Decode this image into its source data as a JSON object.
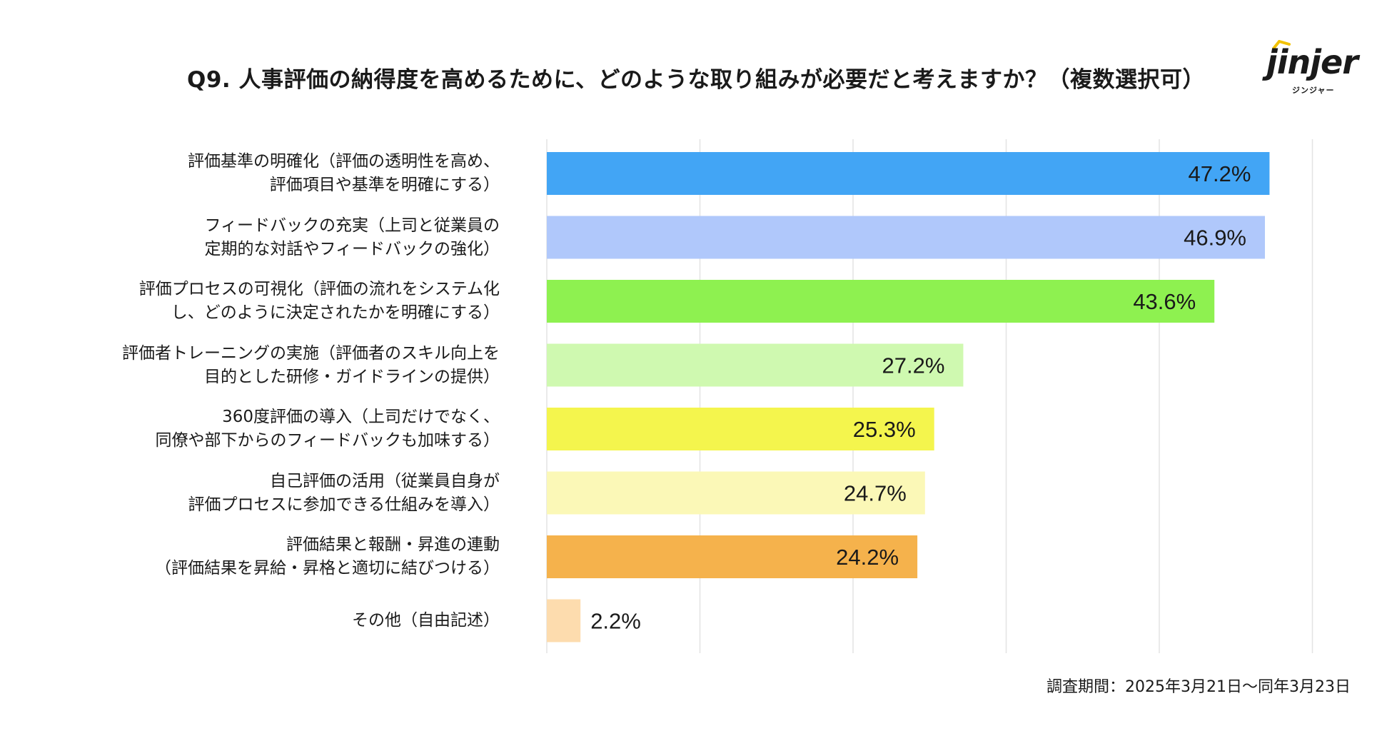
{
  "title": "Q9. 人事評価の納得度を高めるために、どのような取り組みが必要だと考えますか？（複数選択可）",
  "logo": {
    "wordmark": "jinjer",
    "kana": "ジンジャー"
  },
  "footnote": "調査期間：2025年3月21日〜同年3月23日",
  "chart_data": {
    "type": "bar",
    "orientation": "horizontal",
    "title": "Q9. 人事評価の納得度を高めるために、どのような取り組みが必要だと考えますか？（複数選択可）",
    "xlim": [
      0,
      50
    ],
    "grid": true,
    "categories": [
      {
        "line1": "評価基準の明確化（評価の透明性を高め、",
        "line2": "評価項目や基準を明確にする）"
      },
      {
        "line1": "フィードバックの充実（上司と従業員の",
        "line2": "定期的な対話やフィードバックの強化）"
      },
      {
        "line1": "評価プロセスの可視化（評価の流れをシステム化",
        "line2": "し、どのように決定されたかを明確にする）"
      },
      {
        "line1": "評価者トレーニングの実施（評価者のスキル向上を",
        "line2": "目的とした研修・ガイドラインの提供）"
      },
      {
        "line1": "360度評価の導入（上司だけでなく、",
        "line2": "同僚や部下からのフィードバックも加味する）"
      },
      {
        "line1": "自己評価の活用（従業員自身が",
        "line2": "評価プロセスに参加できる仕組みを導入）"
      },
      {
        "line1": "評価結果と報酬・昇進の連動",
        "line2": "（評価結果を昇給・昇格と適切に結びつける）"
      },
      {
        "line1": "その他（自由記述）",
        "line2": ""
      }
    ],
    "values": [
      47.2,
      46.9,
      43.6,
      27.2,
      25.3,
      24.7,
      24.2,
      2.2
    ],
    "value_labels": [
      "47.2%",
      "46.9%",
      "43.6%",
      "27.2%",
      "25.3%",
      "24.7%",
      "24.2%",
      "2.2%"
    ],
    "colors": [
      "#42a5f5",
      "#b0c8fb",
      "#8ef150",
      "#cff9b0",
      "#f4f54d",
      "#fbf8b7",
      "#f5b24c",
      "#fddcae"
    ]
  }
}
